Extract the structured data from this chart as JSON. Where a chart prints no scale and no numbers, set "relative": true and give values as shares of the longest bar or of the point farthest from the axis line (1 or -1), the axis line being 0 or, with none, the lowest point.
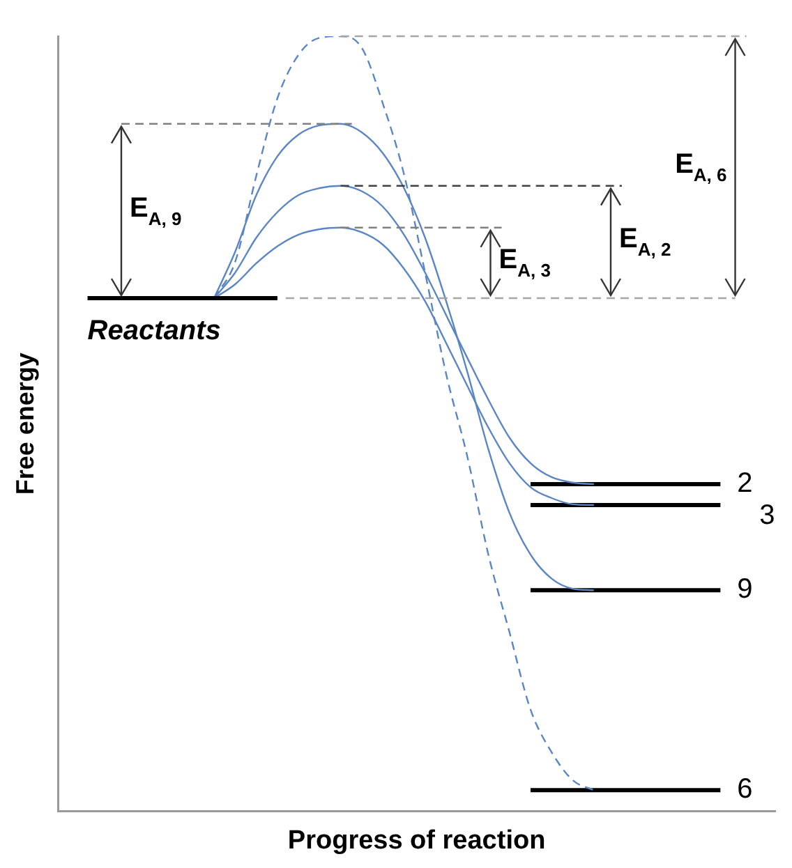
{
  "chart_data": {
    "type": "line",
    "relative": true,
    "xlabel": "Progress of reaction",
    "ylabel": "Free energy",
    "categories": [
      null,
      null,
      null,
      null,
      null,
      null,
      null,
      null,
      null,
      null,
      null,
      null,
      null,
      null,
      null,
      null,
      null,
      null,
      null,
      null,
      null,
      null,
      null,
      null,
      null,
      null,
      null,
      null,
      null,
      null,
      null
    ],
    "series": [
      {
        "name": "Reactants",
        "color": "#000000",
        "values": [
          0.662,
          0.662,
          0.662,
          0.662,
          0.662,
          0.662,
          0.662,
          0.662,
          0.662,
          0.662,
          null,
          null,
          null,
          null,
          null,
          null,
          null,
          null,
          null,
          null,
          null,
          null,
          null,
          null,
          null,
          null,
          null,
          null,
          null,
          null,
          null
        ]
      },
      {
        "color": "#5b86c5",
        "values": [
          null,
          null,
          null,
          null,
          null,
          null,
          0.662,
          0.722,
          0.795,
          0.845,
          0.873,
          0.885,
          0.887,
          0.876,
          0.849,
          0.804,
          0.74,
          0.658,
          0.567,
          0.467,
          0.385,
          0.331,
          0.3,
          0.287,
          0.285,
          null,
          null,
          null,
          null,
          null,
          null
        ]
      },
      {
        "color": "#5b86c5",
        "values": [
          null,
          null,
          null,
          null,
          null,
          null,
          0.662,
          0.68,
          0.707,
          0.729,
          0.744,
          0.751,
          0.753,
          0.747,
          0.731,
          0.7,
          0.658,
          0.604,
          0.549,
          0.495,
          0.449,
          0.418,
          0.404,
          0.396,
          0.395,
          null,
          null,
          null,
          null,
          null,
          null
        ]
      },
      {
        "color": "#5b86c5",
        "values": [
          null,
          null,
          null,
          null,
          null,
          null,
          0.662,
          0.695,
          0.74,
          0.773,
          0.795,
          0.804,
          0.807,
          0.8,
          0.78,
          0.744,
          0.695,
          0.64,
          0.585,
          0.531,
          0.482,
          0.449,
          0.431,
          0.424,
          0.422,
          null,
          null,
          null,
          null,
          null,
          null
        ]
      },
      {
        "color": "#5b86c5",
        "line_style": "dashed",
        "values": [
          null,
          null,
          null,
          null,
          null,
          null,
          0.662,
          0.709,
          0.82,
          0.92,
          0.976,
          0.998,
          1,
          0.985,
          0.913,
          0.822,
          0.695,
          0.564,
          0.458,
          0.331,
          0.231,
          0.131,
          0.076,
          0.04,
          0.027,
          null,
          null,
          null,
          null,
          null,
          null
        ]
      },
      {
        "name": "2",
        "color": "#000000",
        "values": [
          null,
          null,
          null,
          null,
          null,
          null,
          null,
          null,
          null,
          null,
          null,
          null,
          null,
          null,
          null,
          null,
          null,
          null,
          null,
          null,
          null,
          0.422,
          0.422,
          0.422,
          0.422,
          0.422,
          0.422,
          0.422,
          0.422,
          0.422,
          0.422
        ]
      },
      {
        "name": "3",
        "color": "#000000",
        "values": [
          null,
          null,
          null,
          null,
          null,
          null,
          null,
          null,
          null,
          null,
          null,
          null,
          null,
          null,
          null,
          null,
          null,
          null,
          null,
          null,
          null,
          0.395,
          0.395,
          0.395,
          0.395,
          0.395,
          0.395,
          0.395,
          0.395,
          0.395,
          0.395
        ]
      },
      {
        "name": "9",
        "color": "#000000",
        "values": [
          null,
          null,
          null,
          null,
          null,
          null,
          null,
          null,
          null,
          null,
          null,
          null,
          null,
          null,
          null,
          null,
          null,
          null,
          null,
          null,
          null,
          0.285,
          0.285,
          0.285,
          0.285,
          0.285,
          0.285,
          0.285,
          0.285,
          0.285,
          0.285
        ]
      },
      {
        "name": "6",
        "color": "#000000",
        "values": [
          null,
          null,
          null,
          null,
          null,
          null,
          null,
          null,
          null,
          null,
          null,
          null,
          null,
          null,
          null,
          null,
          null,
          null,
          null,
          null,
          null,
          0.027,
          0.027,
          0.027,
          0.027,
          0.027,
          0.027,
          0.027,
          0.027,
          0.027,
          0.027
        ]
      }
    ],
    "ref_lines": [
      {
        "axis": "y",
        "value": 0.662,
        "color": "#a6a6a6",
        "line_style": "dashed"
      },
      {
        "axis": "y",
        "value": 0.887,
        "color": "#808080",
        "line_style": "dashed"
      },
      {
        "axis": "y",
        "value": 0.753,
        "color": "#808080",
        "line_style": "dashed"
      },
      {
        "axis": "y",
        "value": 0.807,
        "color": "#404040",
        "line_style": "dashed"
      },
      {
        "axis": "y",
        "value": 1,
        "color": "#a6a6a6",
        "line_style": "dashed"
      }
    ],
    "annotations": [
      "E$_{A, 9}$",
      "E$_{A, 3}$",
      "E$_{A, 2}$",
      "E$_{A, 6}$"
    ]
  }
}
